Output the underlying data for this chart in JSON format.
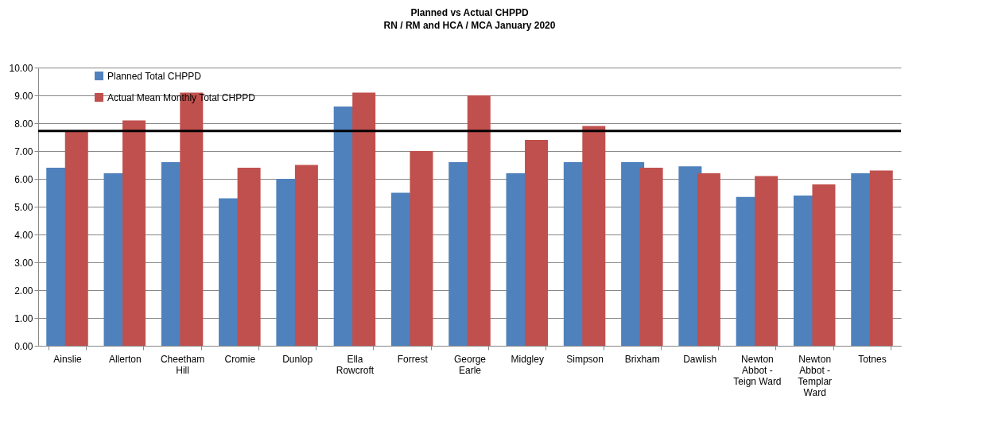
{
  "chart_data": {
    "type": "bar",
    "title": "Planned vs Actual CHPPD",
    "subtitle": "RN / RM and HCA / MCA January 2020",
    "categories": [
      "Ainslie",
      "Allerton",
      "Cheetham Hill",
      "Cromie",
      "Dunlop",
      "Ella Rowcroft",
      "Forrest",
      "George Earle",
      "Midgley",
      "Simpson",
      "Brixham",
      "Dawlish",
      "Newton Abbot - Teign Ward",
      "Newton Abbot - Templar Ward",
      "Totnes"
    ],
    "series": [
      {
        "name": "Planned Total CHPPD",
        "color": "#4f81bd",
        "values": [
          6.4,
          6.2,
          6.6,
          5.3,
          6.0,
          8.6,
          5.5,
          6.6,
          6.2,
          6.6,
          6.6,
          6.45,
          5.35,
          5.4,
          6.2
        ]
      },
      {
        "name": "Actual Mean Monthly Total CHPPD",
        "color": "#c0504d",
        "values": [
          7.7,
          8.1,
          9.1,
          6.4,
          6.5,
          9.1,
          7.0,
          9.0,
          7.4,
          7.9,
          6.4,
          6.2,
          6.1,
          5.8,
          6.3
        ]
      }
    ],
    "ylim": [
      0,
      10
    ],
    "yticks": [
      {
        "value": 0,
        "label": "0.00"
      },
      {
        "value": 1,
        "label": "1.00"
      },
      {
        "value": 2,
        "label": "2.00"
      },
      {
        "value": 3,
        "label": "3.00"
      },
      {
        "value": 4,
        "label": "4.00"
      },
      {
        "value": 5,
        "label": "5.00"
      },
      {
        "value": 6,
        "label": "6.00"
      },
      {
        "value": 7,
        "label": "7.00"
      },
      {
        "value": 8,
        "label": "8.00"
      },
      {
        "value": 9,
        "label": "9.00"
      },
      {
        "value": 10,
        "label": "10.00"
      }
    ],
    "grid": "y",
    "legend": "top left",
    "ref_lines": [
      {
        "axis": "y",
        "value": 7.72,
        "color": "#000000"
      }
    ]
  }
}
